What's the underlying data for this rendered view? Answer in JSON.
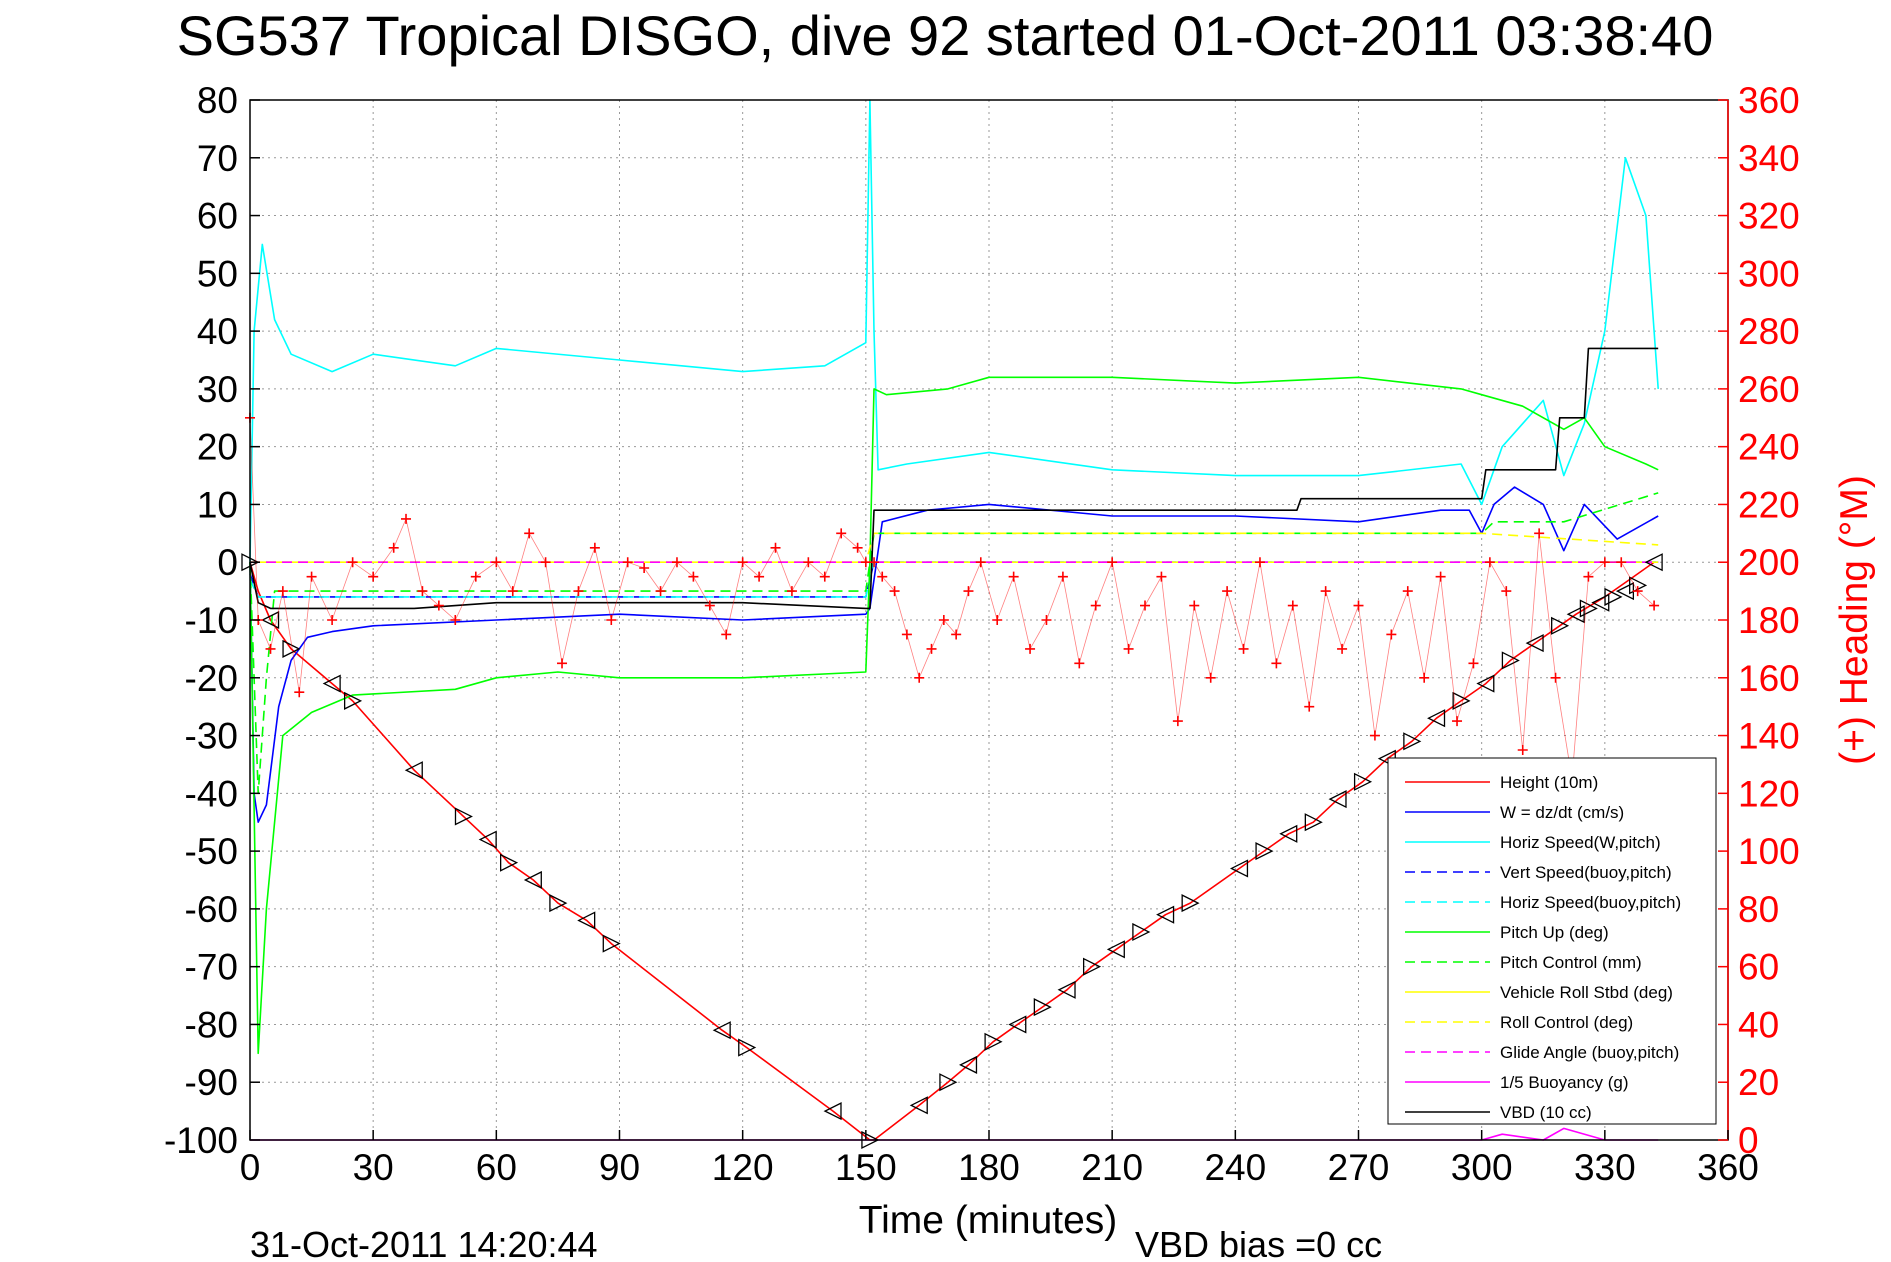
{
  "chart_data": {
    "type": "line",
    "title": "SG537 Tropical DISGO, dive 92 started 01-Oct-2011 03:38:40",
    "xlabel": "Time (minutes)",
    "ylabel_right": "(+) Heading (°M)",
    "xlim": [
      0,
      360
    ],
    "ylim": [
      -100,
      80
    ],
    "ylim_right": [
      0,
      360
    ],
    "x_ticks": [
      0,
      30,
      60,
      90,
      120,
      150,
      180,
      210,
      240,
      270,
      300,
      330,
      360
    ],
    "y_ticks": [
      80,
      70,
      60,
      50,
      40,
      30,
      20,
      10,
      0,
      -10,
      -20,
      -30,
      -40,
      -50,
      -60,
      -70,
      -80,
      -90,
      -100
    ],
    "y_ticks_right": [
      360,
      340,
      320,
      300,
      280,
      260,
      240,
      220,
      200,
      180,
      160,
      140,
      120,
      100,
      80,
      60,
      40,
      20,
      0
    ],
    "grid": true,
    "legend_placement": "bottom-right",
    "footer_left": "31-Oct-2011 14:20:44",
    "footer_right": "VBD bias =0 cc",
    "series": [
      {
        "name": "Height (10m)",
        "color": "#ff0000",
        "style": "solid",
        "x": [
          0,
          2,
          5,
          10,
          20,
          25,
          40,
          52,
          58,
          63,
          69,
          75,
          82,
          88,
          115,
          121,
          142,
          151,
          152,
          163,
          170,
          175,
          181,
          187,
          193,
          199,
          205,
          211,
          217,
          223,
          229,
          241,
          247,
          253,
          259,
          265,
          271,
          277,
          283,
          289,
          295,
          301,
          307,
          313,
          319,
          323,
          330,
          336,
          342
        ],
        "y": [
          0,
          -5,
          -10,
          -15,
          -21,
          -24,
          -36,
          -44,
          -48,
          -52,
          -55,
          -59,
          -62,
          -66,
          -81,
          -84,
          -95,
          -100,
          -100,
          -94,
          -90,
          -87,
          -83,
          -80,
          -77,
          -74,
          -70,
          -67,
          -64,
          -61,
          -59,
          -53,
          -50,
          -47,
          -45,
          -41,
          -38,
          -34,
          -31,
          -27,
          -24,
          -21,
          -17,
          -14,
          -11,
          -9,
          -6,
          -3,
          0
        ]
      },
      {
        "name": "W = dz/dt (cm/s)",
        "color": "#0000ff",
        "style": "solid",
        "x": [
          0,
          1,
          2,
          4,
          7,
          10,
          14,
          20,
          30,
          60,
          90,
          120,
          150,
          151,
          154,
          165,
          180,
          210,
          240,
          270,
          290,
          297,
          300,
          303,
          308,
          315,
          320,
          325,
          333,
          343
        ],
        "y": [
          0,
          -40,
          -45,
          -42,
          -25,
          -17,
          -13,
          -12,
          -11,
          -10,
          -9,
          -10,
          -9,
          -8,
          7,
          9,
          10,
          8,
          8,
          7,
          9,
          9,
          5,
          10,
          13,
          10,
          2,
          10,
          4,
          8
        ]
      },
      {
        "name": "Horiz Speed(W,pitch)",
        "color": "#00ffff",
        "style": "solid",
        "x": [
          0,
          1,
          3,
          6,
          10,
          20,
          30,
          50,
          60,
          90,
          120,
          140,
          150,
          151,
          152,
          153,
          160,
          180,
          210,
          240,
          270,
          295,
          300,
          305,
          315,
          320,
          325,
          330,
          335,
          340,
          343
        ],
        "y": [
          0,
          40,
          55,
          42,
          36,
          33,
          36,
          34,
          37,
          35,
          33,
          34,
          38,
          80,
          40,
          16,
          17,
          19,
          16,
          15,
          15,
          17,
          10,
          20,
          28,
          15,
          24,
          40,
          70,
          60,
          30
        ]
      },
      {
        "name": "Vert Speed(buoy,pitch)",
        "color": "#0000ff",
        "style": "dashed",
        "x": [
          0,
          2,
          150,
          152,
          300,
          343
        ],
        "y": [
          -2,
          -6,
          -6,
          0,
          0,
          0
        ]
      },
      {
        "name": "Horiz Speed(buoy,pitch)",
        "color": "#00ffff",
        "style": "dashed",
        "x": [
          0,
          2,
          150,
          152,
          300,
          343
        ],
        "y": [
          -3,
          -6,
          -6,
          0,
          0,
          0
        ]
      },
      {
        "name": "Pitch Up (deg)",
        "color": "#00ff00",
        "style": "solid",
        "x": [
          0,
          2,
          4,
          8,
          15,
          25,
          50,
          60,
          75,
          90,
          120,
          150,
          151,
          152,
          155,
          170,
          180,
          210,
          240,
          270,
          295,
          300,
          310,
          320,
          325,
          330,
          340,
          343
        ],
        "y": [
          0,
          -85,
          -60,
          -30,
          -26,
          -23,
          -22,
          -20,
          -19,
          -20,
          -20,
          -19,
          0,
          30,
          29,
          30,
          32,
          32,
          31,
          32,
          30,
          29,
          27,
          23,
          25,
          20,
          17,
          16
        ]
      },
      {
        "name": "Pitch Control (mm)",
        "color": "#00ff00",
        "style": "dashed",
        "x": [
          0,
          2,
          4,
          6,
          150,
          152,
          300,
          303,
          320,
          343
        ],
        "y": [
          0,
          -40,
          -20,
          -5,
          -5,
          5,
          5,
          7,
          7,
          12
        ]
      },
      {
        "name": "Vehicle Roll Stbd (deg)",
        "color": "#ffff00",
        "style": "solid",
        "x": [
          0,
          30,
          60,
          90,
          120,
          150,
          180,
          210,
          240,
          270,
          300,
          330,
          343
        ],
        "y": [
          0,
          0,
          0,
          0,
          0,
          0,
          0,
          0,
          0,
          0,
          0,
          0,
          0
        ]
      },
      {
        "name": "Roll Control (deg)",
        "color": "#ffff00",
        "style": "dashed",
        "x": [
          0,
          150,
          152,
          300,
          343
        ],
        "y": [
          0,
          0,
          5,
          5,
          3
        ]
      },
      {
        "name": "Glide Angle (buoy,pitch)",
        "color": "#ff00ff",
        "style": "dashed",
        "x": [
          0,
          150,
          152,
          343
        ],
        "y": [
          0,
          0,
          0,
          0
        ]
      },
      {
        "name": "1/5 Buoyancy (g)",
        "color": "#ff00ff",
        "style": "solid",
        "x": [
          0,
          1,
          2,
          150,
          300,
          305,
          315,
          320,
          330,
          343
        ],
        "y": [
          -100,
          -100,
          -100,
          -100,
          -100,
          -99,
          -100,
          -98,
          -100,
          -100
        ]
      },
      {
        "name": "VBD (10 cc)",
        "color": "#000000",
        "style": "solid",
        "x": [
          0,
          2,
          5,
          20,
          40,
          60,
          90,
          120,
          150,
          151,
          152,
          200,
          255,
          256,
          300,
          301,
          318,
          319,
          325,
          326,
          343
        ],
        "y": [
          0,
          -7,
          -8,
          -8,
          -8,
          -7,
          -7,
          -7,
          -8,
          -8,
          9,
          9,
          9,
          11,
          11,
          16,
          16,
          25,
          25,
          37,
          37
        ]
      }
    ],
    "heading_series": {
      "name": "(+) Heading",
      "axis": "right",
      "color": "#ff0000",
      "marker": "+",
      "x": [
        0,
        2,
        5,
        8,
        12,
        15,
        20,
        25,
        30,
        35,
        38,
        42,
        46,
        50,
        55,
        60,
        64,
        68,
        72,
        76,
        80,
        84,
        88,
        92,
        96,
        100,
        104,
        108,
        112,
        116,
        120,
        124,
        128,
        132,
        136,
        140,
        144,
        148,
        150,
        152,
        154,
        157,
        160,
        163,
        166,
        169,
        172,
        175,
        178,
        182,
        186,
        190,
        194,
        198,
        202,
        206,
        210,
        214,
        218,
        222,
        226,
        230,
        234,
        238,
        242,
        246,
        250,
        254,
        258,
        262,
        266,
        270,
        274,
        278,
        282,
        286,
        290,
        294,
        298,
        302,
        306,
        310,
        314,
        318,
        322,
        326,
        330,
        334,
        338,
        342
      ],
      "y": [
        250,
        180,
        170,
        190,
        155,
        195,
        180,
        200,
        195,
        205,
        215,
        190,
        185,
        180,
        195,
        200,
        190,
        210,
        200,
        165,
        190,
        205,
        180,
        200,
        198,
        190,
        200,
        195,
        185,
        175,
        200,
        195,
        205,
        190,
        200,
        195,
        210,
        205,
        200,
        200,
        195,
        190,
        175,
        160,
        170,
        180,
        175,
        190,
        200,
        180,
        195,
        170,
        180,
        195,
        165,
        185,
        200,
        170,
        185,
        195,
        145,
        185,
        160,
        190,
        170,
        200,
        165,
        185,
        150,
        190,
        170,
        185,
        140,
        175,
        190,
        160,
        195,
        145,
        165,
        200,
        190,
        135,
        210,
        160,
        125,
        195,
        200,
        200,
        190,
        185
      ]
    },
    "markers": {
      "description_free": true,
      "x": [
        0,
        5,
        10,
        20,
        25,
        40,
        52,
        58,
        63,
        69,
        75,
        82,
        88,
        115,
        121,
        142,
        151,
        163,
        170,
        175,
        181,
        187,
        193,
        199,
        205,
        211,
        217,
        223,
        229,
        241,
        247,
        253,
        259,
        265,
        271,
        277,
        283,
        289,
        295,
        301,
        307,
        313,
        319,
        323,
        326,
        329,
        332,
        335,
        338,
        342
      ],
      "y": [
        0,
        -10,
        -15,
        -21,
        -24,
        -36,
        -44,
        -48,
        -52,
        -55,
        -59,
        -62,
        -66,
        -81,
        -84,
        -95,
        -100,
        -94,
        -90,
        -87,
        -83,
        -80,
        -77,
        -74,
        -70,
        -67,
        -64,
        -61,
        -59,
        -53,
        -50,
        -47,
        -45,
        -41,
        -38,
        -34,
        -31,
        -27,
        -24,
        -21,
        -17,
        -14,
        -11,
        -9,
        -8,
        -7,
        -6,
        -5,
        -4,
        0
      ]
    }
  }
}
